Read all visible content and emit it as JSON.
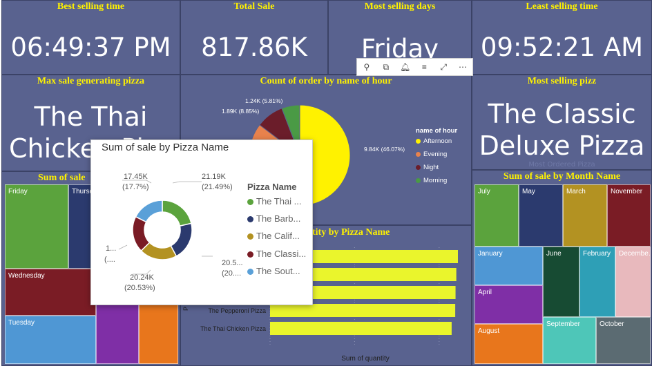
{
  "kpis": {
    "best_selling_time": {
      "title": "Best selling time",
      "value": "06:49:37 PM"
    },
    "total_sale": {
      "title": "Total Sale",
      "value": "817.86K"
    },
    "most_selling_days": {
      "title": "Most selling days",
      "value": "Friday"
    },
    "least_selling_time": {
      "title": "Least selling time",
      "value": "09:52:21 AM"
    },
    "max_sale_pizza": {
      "title": "Max sale generating pizza",
      "line1": "The Thai",
      "line2": "Chicken Pi"
    },
    "most_selling_pizz": {
      "title": "Most selling pizz",
      "line1": "The Classic",
      "line2": "Deluxe Pizza",
      "faint": "Most Ordered Pizza"
    }
  },
  "toolbar": {
    "icons": [
      "pin-icon",
      "copy-icon",
      "bell-icon",
      "filter-icon",
      "focus-mode-icon",
      "more-options-icon"
    ],
    "glyphs": [
      "⚲",
      "⧉",
      "🔔︎",
      "≡",
      "⤢",
      "⋯"
    ]
  },
  "hour_chart": {
    "title": "Count of order by name of hour",
    "legend_title": "name of hour",
    "labels": {
      "afternoon": "9.84K (46.07%)",
      "morning": "1.24K (5.81%)",
      "night": "1.89K (8.85%)"
    },
    "chart_data": {
      "type": "pie",
      "categories": [
        "Afternoon",
        "Evening",
        "Night",
        "Morning"
      ],
      "values": [
        9840,
        null,
        1890,
        1240
      ],
      "percent": [
        46.07,
        null,
        8.85,
        5.81
      ],
      "colors": [
        "#fff200",
        "#e8824c",
        "#6b1d2a",
        "#4a9a45"
      ]
    }
  },
  "sale_by_day": {
    "title": "Sum of sale by Day",
    "title_visible": "Sum of sale",
    "tiles": [
      {
        "label": "Friday",
        "color": "#5ba33d"
      },
      {
        "label": "Thursd",
        "color": "#2b3a6e"
      },
      {
        "label": "Wednesday",
        "color": "#7a1c25"
      },
      {
        "label": "Tuesday",
        "color": "#4f97d4"
      },
      {
        "label": "",
        "color": "#7f2fa6"
      },
      {
        "label": "",
        "color": "#e8761c"
      }
    ]
  },
  "sale_by_month": {
    "title": "Sum of sale by Month Name",
    "tiles": [
      {
        "label": "July",
        "color": "#5ba33d"
      },
      {
        "label": "May",
        "color": "#2b3a6e"
      },
      {
        "label": "March",
        "color": "#b39222"
      },
      {
        "label": "November",
        "color": "#7a1c25"
      },
      {
        "label": "January",
        "color": "#4f97d4"
      },
      {
        "label": "June",
        "color": "#174b33"
      },
      {
        "label": "February",
        "color": "#2e9fb6"
      },
      {
        "label": "Decembe…",
        "color": "#e8b9bd"
      },
      {
        "label": "April",
        "color": "#7f2fa6"
      },
      {
        "label": "September",
        "color": "#4ec6b8"
      },
      {
        "label": "October",
        "color": "#5b6b72"
      },
      {
        "label": "August",
        "color": "#e8761c"
      }
    ]
  },
  "quantity_chart": {
    "title": "Sum of quantity by Pizza Name",
    "title_visible": "tity by Pizza Name",
    "xlabel": "Sum of quantity",
    "ylabel": "P",
    "chart_data": {
      "type": "bar",
      "orientation": "horizontal",
      "categories": [
        "",
        "",
        "",
        "The Pepperoni Pizza",
        "The Thai Chicken Pizza"
      ],
      "values": [
        2453,
        2432,
        2422,
        2418,
        2371
      ],
      "bar_color": "#eaf52c"
    }
  },
  "tooltip": {
    "title": "Sum of sale by Pizza Name",
    "legend_title": "Pizza Name",
    "legend": [
      "The Thai ...",
      "The Barb...",
      "The Calif...",
      "The Classi...",
      "The Sout..."
    ],
    "labels": {
      "thai": [
        "21.19K",
        "(21.49%)"
      ],
      "barb": [
        "20.5...",
        "(20...."
      ],
      "calif": [
        "20.24K",
        "(20.53%)"
      ],
      "classic": [
        "1...",
        "(...."
      ],
      "south": [
        "17.45K",
        "(17.7%)"
      ]
    },
    "chart_data": {
      "type": "pie",
      "categories": [
        "The Thai Chicken Pizza",
        "The Barbecue Chicken Pizza",
        "The California Chicken Pizza",
        "The Classic Deluxe Pizza",
        "The Southwest Chicken Pizza"
      ],
      "values": [
        21190,
        20500,
        20240,
        19500,
        17450
      ],
      "percent": [
        21.49,
        20.8,
        20.53,
        19.5,
        17.7
      ],
      "colors": [
        "#5ba33d",
        "#2b3a6e",
        "#b39222",
        "#7a1c25",
        "#5aa0d8"
      ]
    }
  }
}
